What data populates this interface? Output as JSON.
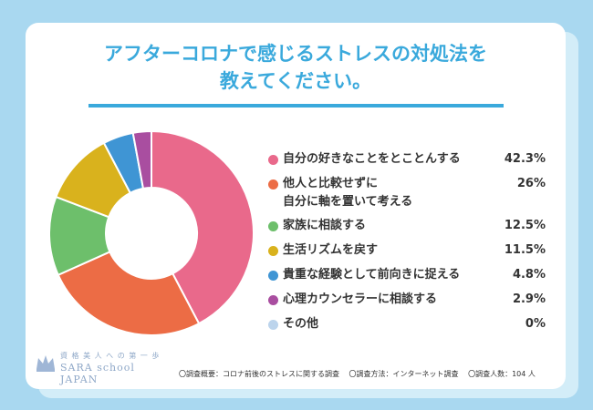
{
  "title_lines": [
    "アフターコロナで感じるストレスの対処法を",
    "教えてください。"
  ],
  "colors": {
    "background": "#a9d8f0",
    "card": "#ffffff",
    "accent": "#3aa9dc"
  },
  "chart_data": {
    "type": "pie",
    "donut": true,
    "title": "アフターコロナで感じるストレスの対処法を教えてください。",
    "unit": "%",
    "series": [
      {
        "label": "自分の好きなことをとことんする",
        "value": 42.3,
        "value_text": "42.3%",
        "color": "#e9698b"
      },
      {
        "label": "他人と比較せずに自分に軸を置いて考える",
        "label_lines": [
          "他人と比較せずに",
          "自分に軸を置いて考える"
        ],
        "value": 26,
        "value_text": "26%",
        "color": "#ec6c45"
      },
      {
        "label": "家族に相談する",
        "value": 12.5,
        "value_text": "12.5%",
        "color": "#6dbf6b"
      },
      {
        "label": "生活リズムを戻す",
        "value": 11.5,
        "value_text": "11.5%",
        "color": "#d9b21d"
      },
      {
        "label": "貴重な経験として前向きに捉える",
        "value": 4.8,
        "value_text": "4.8%",
        "color": "#3f95d4"
      },
      {
        "label": "心理カウンセラーに相談する",
        "value": 2.9,
        "value_text": "2.9%",
        "color": "#a94ea0"
      },
      {
        "label": "その他",
        "value": 0,
        "value_text": "0%",
        "color": "#bcd4ec"
      }
    ],
    "legend_position": "right"
  },
  "footer": {
    "survey_summary": "〇調査概要：コロナ前後のストレスに関する調査",
    "survey_method": "〇調査方法：インターネット調査",
    "respondents": "〇調査人数：104 人"
  },
  "logo": {
    "tagline": "資 格 美 人 へ の 第 一 歩",
    "name": "SARA school JAPAN",
    "icon": "crown-icon"
  }
}
